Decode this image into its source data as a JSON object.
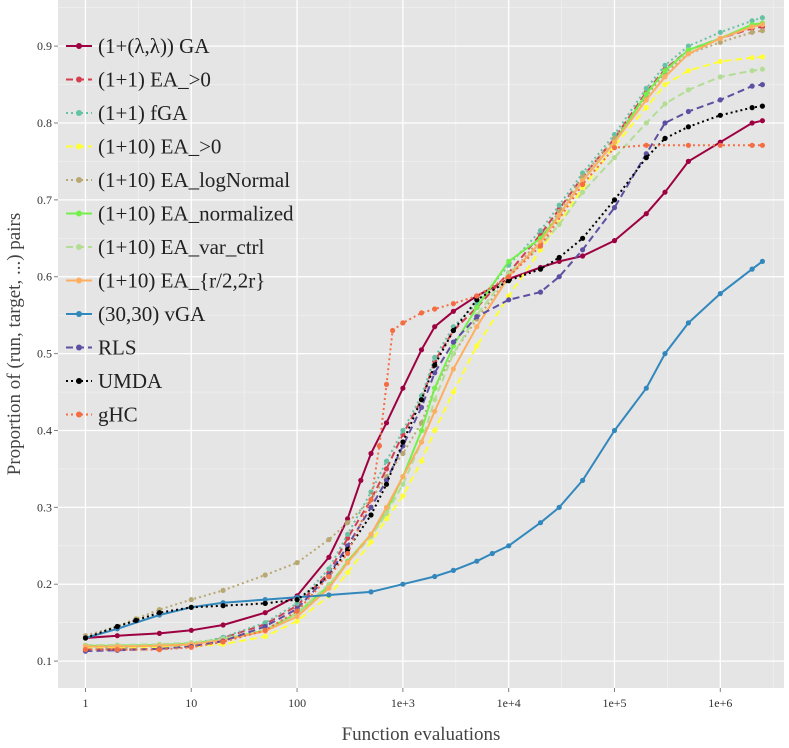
{
  "chart_data": {
    "type": "line",
    "title": "",
    "xlabel": "Function evaluations",
    "ylabel": "Proportion of (run, target, ...) pairs",
    "xscale": "log10",
    "xlim": [
      0.55,
      4000000
    ],
    "ylim": [
      0.065,
      0.96
    ],
    "grid": true,
    "legend_position": "top-left",
    "x_ticks": [
      {
        "value": 1,
        "label": "1"
      },
      {
        "value": 10,
        "label": "10"
      },
      {
        "value": 100,
        "label": "100"
      },
      {
        "value": 1000,
        "label": "1e+3"
      },
      {
        "value": 10000,
        "label": "1e+4"
      },
      {
        "value": 100000,
        "label": "1e+5"
      },
      {
        "value": 1000000,
        "label": "1e+6"
      }
    ],
    "y_ticks": [
      {
        "value": 0.1,
        "label": "0.1"
      },
      {
        "value": 0.2,
        "label": "0.2"
      },
      {
        "value": 0.3,
        "label": "0.3"
      },
      {
        "value": 0.4,
        "label": "0.4"
      },
      {
        "value": 0.5,
        "label": "0.5"
      },
      {
        "value": 0.6,
        "label": "0.6"
      },
      {
        "value": 0.7,
        "label": "0.7"
      },
      {
        "value": 0.8,
        "label": "0.8"
      },
      {
        "value": 0.9,
        "label": "0.9"
      }
    ],
    "series": [
      {
        "name": "(1+(λ,λ)) GA",
        "color": "#9e0142",
        "dash": "solid",
        "x": [
          1,
          2,
          5,
          10,
          20,
          50,
          100,
          200,
          300,
          400,
          500,
          700,
          1000,
          1500,
          2000,
          3000,
          5000,
          10000,
          20000,
          30000,
          50000,
          100000,
          200000,
          300000,
          500000,
          1000000,
          2000000,
          2500000
        ],
        "y": [
          0.13,
          0.133,
          0.136,
          0.14,
          0.147,
          0.163,
          0.185,
          0.235,
          0.285,
          0.335,
          0.37,
          0.41,
          0.455,
          0.505,
          0.535,
          0.555,
          0.575,
          0.597,
          0.612,
          0.62,
          0.627,
          0.647,
          0.682,
          0.71,
          0.75,
          0.775,
          0.8,
          0.803
        ]
      },
      {
        "name": "(1+1) EA_>0",
        "color": "#d53e4f",
        "dash": "dashed",
        "x": [
          1,
          2,
          5,
          10,
          20,
          50,
          100,
          200,
          300,
          500,
          700,
          1000,
          1500,
          2000,
          3000,
          5000,
          10000,
          20000,
          30000,
          50000,
          100000,
          200000,
          300000,
          500000,
          1000000,
          2000000,
          2500000
        ],
        "y": [
          0.115,
          0.116,
          0.118,
          0.121,
          0.13,
          0.148,
          0.172,
          0.215,
          0.26,
          0.31,
          0.35,
          0.395,
          0.44,
          0.49,
          0.53,
          0.56,
          0.605,
          0.655,
          0.688,
          0.73,
          0.78,
          0.84,
          0.87,
          0.895,
          0.91,
          0.923,
          0.925
        ]
      },
      {
        "name": "(1+1) fGA",
        "color": "#66c2a5",
        "dash": "dotted",
        "x": [
          1,
          2,
          5,
          10,
          20,
          50,
          100,
          200,
          300,
          500,
          700,
          1000,
          1500,
          2000,
          3000,
          5000,
          10000,
          20000,
          30000,
          50000,
          100000,
          200000,
          300000,
          500000,
          1000000,
          2000000,
          2500000
        ],
        "y": [
          0.116,
          0.117,
          0.119,
          0.122,
          0.131,
          0.15,
          0.175,
          0.22,
          0.265,
          0.32,
          0.36,
          0.4,
          0.445,
          0.495,
          0.535,
          0.565,
          0.615,
          0.66,
          0.693,
          0.735,
          0.785,
          0.845,
          0.875,
          0.9,
          0.918,
          0.933,
          0.937
        ]
      },
      {
        "name": "(1+10) EA_>0",
        "color": "#ffff33",
        "dash": "dashed",
        "x": [
          1,
          2,
          5,
          10,
          20,
          50,
          100,
          200,
          300,
          500,
          700,
          1000,
          1500,
          2000,
          3000,
          5000,
          10000,
          20000,
          30000,
          50000,
          100000,
          200000,
          300000,
          500000,
          1000000,
          2000000,
          2500000
        ],
        "y": [
          0.118,
          0.118,
          0.118,
          0.119,
          0.122,
          0.132,
          0.152,
          0.185,
          0.215,
          0.255,
          0.285,
          0.315,
          0.36,
          0.4,
          0.45,
          0.51,
          0.575,
          0.635,
          0.67,
          0.715,
          0.77,
          0.82,
          0.85,
          0.868,
          0.88,
          0.885,
          0.886
        ]
      },
      {
        "name": "(1+10) EA_logNormal",
        "color": "#b8a872",
        "dash": "dotted",
        "x": [
          1,
          2,
          3,
          5,
          10,
          20,
          50,
          100,
          200,
          300,
          500,
          700,
          1000,
          1500,
          2000,
          3000,
          5000,
          10000,
          20000,
          30000,
          50000,
          100000,
          200000,
          300000,
          500000,
          1000000,
          2000000,
          2500000
        ],
        "y": [
          0.133,
          0.145,
          0.155,
          0.167,
          0.18,
          0.192,
          0.212,
          0.228,
          0.258,
          0.28,
          0.31,
          0.34,
          0.37,
          0.41,
          0.455,
          0.5,
          0.545,
          0.6,
          0.65,
          0.685,
          0.73,
          0.78,
          0.835,
          0.865,
          0.89,
          0.905,
          0.918,
          0.92
        ]
      },
      {
        "name": "(1+10) EA_normalized",
        "color": "#74f04b",
        "dash": "solid",
        "x": [
          1,
          2,
          5,
          10,
          20,
          50,
          100,
          200,
          300,
          500,
          700,
          1000,
          1500,
          2000,
          3000,
          5000,
          10000,
          20000,
          30000,
          50000,
          100000,
          200000,
          300000,
          500000,
          1000000,
          2000000,
          2500000
        ],
        "y": [
          0.12,
          0.12,
          0.121,
          0.123,
          0.128,
          0.14,
          0.162,
          0.198,
          0.23,
          0.265,
          0.295,
          0.34,
          0.4,
          0.455,
          0.51,
          0.56,
          0.62,
          0.65,
          0.68,
          0.725,
          0.775,
          0.838,
          0.868,
          0.895,
          0.91,
          0.928,
          0.93
        ]
      },
      {
        "name": "(1+10) EA_var_ctrl",
        "color": "#b3dd95",
        "dash": "dashed",
        "x": [
          1,
          2,
          5,
          10,
          20,
          50,
          100,
          200,
          300,
          500,
          700,
          1000,
          1500,
          2000,
          3000,
          5000,
          10000,
          20000,
          30000,
          50000,
          100000,
          200000,
          300000,
          500000,
          1000000,
          2000000,
          2500000
        ],
        "y": [
          0.121,
          0.121,
          0.122,
          0.124,
          0.129,
          0.141,
          0.163,
          0.2,
          0.228,
          0.262,
          0.292,
          0.33,
          0.385,
          0.44,
          0.5,
          0.55,
          0.605,
          0.64,
          0.668,
          0.71,
          0.755,
          0.8,
          0.825,
          0.843,
          0.86,
          0.868,
          0.87
        ]
      },
      {
        "name": "(1+10) EA_{r/2,2r}",
        "color": "#fdae61",
        "dash": "solid",
        "x": [
          1,
          2,
          5,
          10,
          20,
          50,
          100,
          200,
          300,
          500,
          700,
          1000,
          1500,
          2000,
          3000,
          5000,
          10000,
          20000,
          30000,
          50000,
          100000,
          200000,
          300000,
          500000,
          1000000,
          2000000,
          2500000
        ],
        "y": [
          0.119,
          0.119,
          0.12,
          0.122,
          0.127,
          0.139,
          0.158,
          0.195,
          0.228,
          0.265,
          0.3,
          0.34,
          0.385,
          0.425,
          0.48,
          0.535,
          0.6,
          0.645,
          0.68,
          0.725,
          0.775,
          0.83,
          0.86,
          0.89,
          0.91,
          0.925,
          0.928
        ]
      },
      {
        "name": "(30,30) vGA",
        "color": "#3288bd",
        "dash": "solid",
        "x": [
          1,
          2,
          5,
          10,
          20,
          50,
          100,
          200,
          500,
          1000,
          2000,
          3000,
          5000,
          7000,
          10000,
          20000,
          30000,
          50000,
          100000,
          200000,
          300000,
          500000,
          1000000,
          2000000,
          2500000
        ],
        "y": [
          0.13,
          0.142,
          0.16,
          0.17,
          0.176,
          0.18,
          0.183,
          0.186,
          0.19,
          0.2,
          0.21,
          0.218,
          0.23,
          0.24,
          0.25,
          0.28,
          0.3,
          0.335,
          0.4,
          0.455,
          0.5,
          0.54,
          0.578,
          0.61,
          0.62
        ]
      },
      {
        "name": "RLS",
        "color": "#5e4fa2",
        "dash": "dashed",
        "x": [
          1,
          2,
          5,
          10,
          20,
          50,
          100,
          200,
          300,
          500,
          700,
          1000,
          1500,
          2000,
          3000,
          5000,
          10000,
          20000,
          30000,
          50000,
          100000,
          200000,
          300000,
          500000,
          1000000,
          2000000,
          2500000
        ],
        "y": [
          0.113,
          0.114,
          0.116,
          0.119,
          0.126,
          0.145,
          0.168,
          0.212,
          0.25,
          0.3,
          0.335,
          0.38,
          0.43,
          0.475,
          0.515,
          0.548,
          0.57,
          0.58,
          0.6,
          0.635,
          0.69,
          0.76,
          0.8,
          0.815,
          0.83,
          0.848,
          0.85
        ]
      },
      {
        "name": "UMDA",
        "color": "#000000",
        "dash": "dotted",
        "x": [
          1,
          2,
          3,
          5,
          10,
          20,
          50,
          100,
          200,
          300,
          500,
          700,
          1000,
          1500,
          2000,
          3000,
          5000,
          10000,
          20000,
          30000,
          50000,
          100000,
          200000,
          300000,
          500000,
          1000000,
          2000000,
          2500000
        ],
        "y": [
          0.13,
          0.145,
          0.153,
          0.163,
          0.17,
          0.172,
          0.175,
          0.18,
          0.21,
          0.245,
          0.29,
          0.33,
          0.385,
          0.44,
          0.485,
          0.53,
          0.57,
          0.595,
          0.61,
          0.625,
          0.65,
          0.7,
          0.755,
          0.78,
          0.795,
          0.81,
          0.82,
          0.822
        ]
      },
      {
        "name": "gHC",
        "color": "#f46d43",
        "dash": "dotted",
        "x": [
          1,
          2,
          5,
          10,
          20,
          50,
          100,
          200,
          300,
          500,
          600,
          700,
          800,
          1000,
          1500,
          2000,
          3000,
          5000,
          10000,
          20000,
          50000,
          100000,
          200000,
          500000,
          1000000,
          2000000,
          2500000
        ],
        "y": [
          0.115,
          0.115,
          0.115,
          0.118,
          0.125,
          0.14,
          0.165,
          0.21,
          0.24,
          0.31,
          0.38,
          0.46,
          0.53,
          0.54,
          0.553,
          0.558,
          0.565,
          0.575,
          0.6,
          0.64,
          0.72,
          0.768,
          0.771,
          0.771,
          0.771,
          0.771,
          0.771
        ]
      }
    ]
  }
}
